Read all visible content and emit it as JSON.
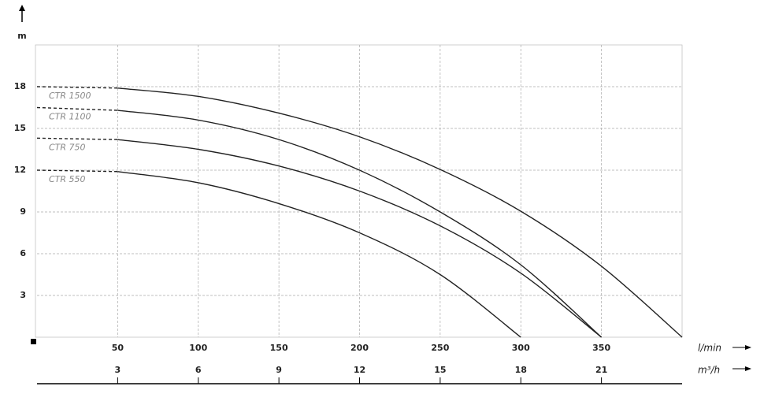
{
  "chart_data": {
    "type": "line",
    "y_label": "m",
    "x_label": "l/min",
    "x2_label": "m³/h",
    "xlim": [
      0,
      400
    ],
    "xticks": [
      50,
      100,
      150,
      200,
      250,
      300,
      350
    ],
    "x2lim": [
      0,
      24
    ],
    "x2ticks": [
      3,
      6,
      9,
      12,
      15,
      18,
      21
    ],
    "ylim": [
      0,
      21
    ],
    "yticks": [
      3,
      6,
      9,
      12,
      15,
      18
    ],
    "grid": true,
    "series": [
      {
        "name": "CTR 1500",
        "color": "#222222",
        "x": [
          0,
          50,
          100,
          150,
          200,
          250,
          300,
          350,
          400
        ],
        "values": [
          18,
          17.9,
          17.3,
          16.1,
          14.4,
          12.05,
          9.05,
          5.1,
          0
        ]
      },
      {
        "name": "CTR 1100",
        "color": "#222222",
        "x": [
          0,
          50,
          100,
          150,
          200,
          250,
          300,
          350
        ],
        "values": [
          16.5,
          16.3,
          15.6,
          14.2,
          12,
          9,
          5.2,
          0
        ]
      },
      {
        "name": "CTR 750",
        "color": "#222222",
        "x": [
          0,
          50,
          100,
          150,
          200,
          250,
          300,
          350
        ],
        "values": [
          14.3,
          14.2,
          13.5,
          12.3,
          10.5,
          8,
          4.6,
          0
        ]
      },
      {
        "name": "CTR 550",
        "color": "#222222",
        "x": [
          0,
          50,
          100,
          150,
          200,
          250,
          300
        ],
        "values": [
          12,
          11.9,
          11.1,
          9.6,
          7.5,
          4.5,
          0
        ]
      }
    ]
  }
}
